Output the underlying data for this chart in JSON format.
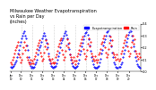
{
  "title": "Milwaukee Weather Evapotranspiration\nvs Rain per Day\n(Inches)",
  "title_fontsize": 3.5,
  "legend_labels": [
    "Evapotranspiration",
    "Rain"
  ],
  "legend_colors": [
    "#0000ff",
    "#ff0000"
  ],
  "line_color_et": "#0000ff",
  "line_color_rain": "#ff0000",
  "dot_color_et": "#0000cc",
  "dot_color_rain": "#cc0000",
  "background_color": "#ffffff",
  "grid_color": "#aaaaaa",
  "years": [
    "2010",
    "2011",
    "2012",
    "2013",
    "2014",
    "2015",
    "2016",
    "2017",
    "2018",
    "2019",
    "2020"
  ],
  "et_data": [
    0.04,
    0.03,
    0.04,
    0.05,
    0.06,
    0.08,
    0.09,
    0.12,
    0.15,
    0.18,
    0.22,
    0.25,
    0.28,
    0.3,
    0.32,
    0.34,
    0.3,
    0.28,
    0.22,
    0.18,
    0.12,
    0.08,
    0.05,
    0.03,
    0.04,
    0.03,
    0.04,
    0.06,
    0.08,
    0.1,
    0.14,
    0.18,
    0.2,
    0.22,
    0.25,
    0.28,
    0.3,
    0.32,
    0.3,
    0.27,
    0.24,
    0.2,
    0.15,
    0.1,
    0.07,
    0.05,
    0.04,
    0.03,
    0.04,
    0.04,
    0.05,
    0.07,
    0.1,
    0.13,
    0.16,
    0.2,
    0.24,
    0.26,
    0.28,
    0.3,
    0.32,
    0.34,
    0.31,
    0.28,
    0.23,
    0.19,
    0.14,
    0.1,
    0.07,
    0.05,
    0.04,
    0.03,
    0.03,
    0.04,
    0.05,
    0.07,
    0.1,
    0.14,
    0.17,
    0.21,
    0.24,
    0.27,
    0.3,
    0.32,
    0.33,
    0.35,
    0.31,
    0.27,
    0.22,
    0.17,
    0.12,
    0.09,
    0.06,
    0.04,
    0.03,
    0.03,
    0.03,
    0.04,
    0.05,
    0.08,
    0.11,
    0.15,
    0.18,
    0.22,
    0.25,
    0.27,
    0.3,
    0.33,
    0.34,
    0.35,
    0.3,
    0.26,
    0.21,
    0.16,
    0.12,
    0.08,
    0.06,
    0.04,
    0.03,
    0.03,
    0.04,
    0.04,
    0.06,
    0.08,
    0.12,
    0.15,
    0.18,
    0.22,
    0.25,
    0.28,
    0.31,
    0.33,
    0.35,
    0.34,
    0.3,
    0.26,
    0.21,
    0.17,
    0.12,
    0.09,
    0.06,
    0.05,
    0.04,
    0.03
  ],
  "rain_data": [
    0.08,
    0.06,
    0.1,
    0.12,
    0.15,
    0.18,
    0.2,
    0.22,
    0.25,
    0.14,
    0.12,
    0.08,
    0.1,
    0.15,
    0.2,
    0.25,
    0.18,
    0.22,
    0.12,
    0.1,
    0.08,
    0.06,
    0.1,
    0.07,
    0.09,
    0.07,
    0.11,
    0.13,
    0.16,
    0.19,
    0.22,
    0.24,
    0.26,
    0.16,
    0.13,
    0.09,
    0.11,
    0.16,
    0.21,
    0.26,
    0.19,
    0.23,
    0.13,
    0.11,
    0.09,
    0.07,
    0.11,
    0.08,
    0.07,
    0.08,
    0.12,
    0.14,
    0.17,
    0.21,
    0.23,
    0.26,
    0.28,
    0.18,
    0.14,
    0.1,
    0.12,
    0.17,
    0.22,
    0.27,
    0.2,
    0.24,
    0.14,
    0.12,
    0.1,
    0.08,
    0.12,
    0.09,
    0.06,
    0.09,
    0.13,
    0.15,
    0.18,
    0.22,
    0.24,
    0.27,
    0.29,
    0.19,
    0.15,
    0.11,
    0.13,
    0.18,
    0.23,
    0.28,
    0.21,
    0.25,
    0.15,
    0.13,
    0.11,
    0.09,
    0.13,
    0.1,
    0.08,
    0.1,
    0.14,
    0.16,
    0.19,
    0.23,
    0.25,
    0.28,
    0.3,
    0.2,
    0.16,
    0.12,
    0.14,
    0.19,
    0.24,
    0.29,
    0.22,
    0.26,
    0.16,
    0.14,
    0.12,
    0.1,
    0.14,
    0.11,
    0.09,
    0.11,
    0.15,
    0.17,
    0.2,
    0.24,
    0.26,
    0.29,
    0.31,
    0.21,
    0.17,
    0.13,
    0.15,
    0.2,
    0.25,
    0.3,
    0.23,
    0.27,
    0.17,
    0.15,
    0.13,
    0.11,
    0.15,
    0.12
  ],
  "ylim": [
    0,
    0.4
  ],
  "yticks": [
    0.0,
    0.1,
    0.2,
    0.3,
    0.4
  ],
  "xtick_labels": [
    "Jan\n10",
    "",
    "",
    "",
    "",
    "Jun\n10",
    "",
    "",
    "",
    "",
    "",
    "Dec\n10",
    "",
    "",
    "",
    "",
    "Jun\n11",
    "",
    "",
    "",
    "",
    "",
    "",
    "",
    "",
    "",
    "",
    "Jun\n12",
    "",
    "",
    "",
    "",
    "",
    "",
    "",
    "",
    "",
    "",
    "Jun\n13",
    "",
    "",
    "",
    "",
    "",
    "",
    "",
    "",
    "",
    "",
    "Jun\n14",
    "",
    "",
    "",
    "",
    "",
    "",
    "",
    "",
    "",
    "",
    "Jun\n15",
    "",
    "",
    "",
    "",
    "",
    "",
    "",
    "",
    "",
    "",
    "Jun\n16",
    "",
    "",
    "",
    "",
    "",
    "",
    "",
    "",
    "",
    "",
    "Jun\n17",
    "",
    "",
    "",
    "",
    "",
    "",
    "",
    "",
    "",
    "",
    "Jun\n18",
    "",
    "",
    "",
    "",
    "",
    "",
    "",
    "",
    "",
    "",
    "Jun\n19",
    "",
    "",
    "",
    "",
    "",
    "",
    "",
    "",
    "",
    "",
    "Jun\n20",
    "",
    "",
    "",
    "",
    "",
    "Dec\n20"
  ],
  "vline_positions": [
    11.5,
    23.5,
    35.5,
    47.5,
    59.5,
    71.5,
    83.5,
    95.5,
    107.5,
    119.5
  ],
  "marker_size": 1.0
}
